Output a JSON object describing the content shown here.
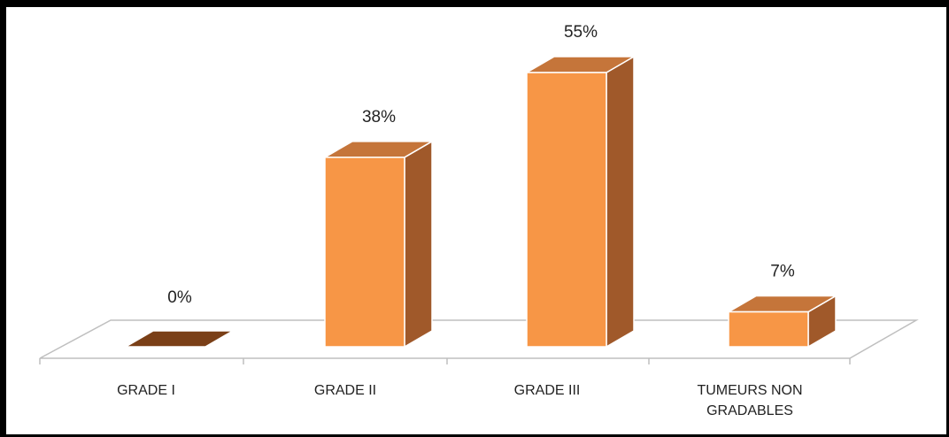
{
  "chart_data": {
    "type": "bar",
    "style": "3d-column",
    "categories": [
      "GRADE I",
      "GRADE II",
      "GRADE III",
      "TUMEURS NON GRADABLES"
    ],
    "values": [
      0,
      38,
      55,
      7
    ],
    "data_labels": [
      "0%",
      "38%",
      "55%",
      "7%"
    ],
    "title": "",
    "xlabel": "",
    "ylabel": "",
    "ylim": [
      0,
      55
    ],
    "grid": false,
    "legend": "none",
    "colors": {
      "front": "#F79646",
      "side": "#A0592A",
      "top": "#C5753A",
      "zero_bar": "#7A3F17",
      "floor_stroke": "#BFBFBF"
    }
  }
}
